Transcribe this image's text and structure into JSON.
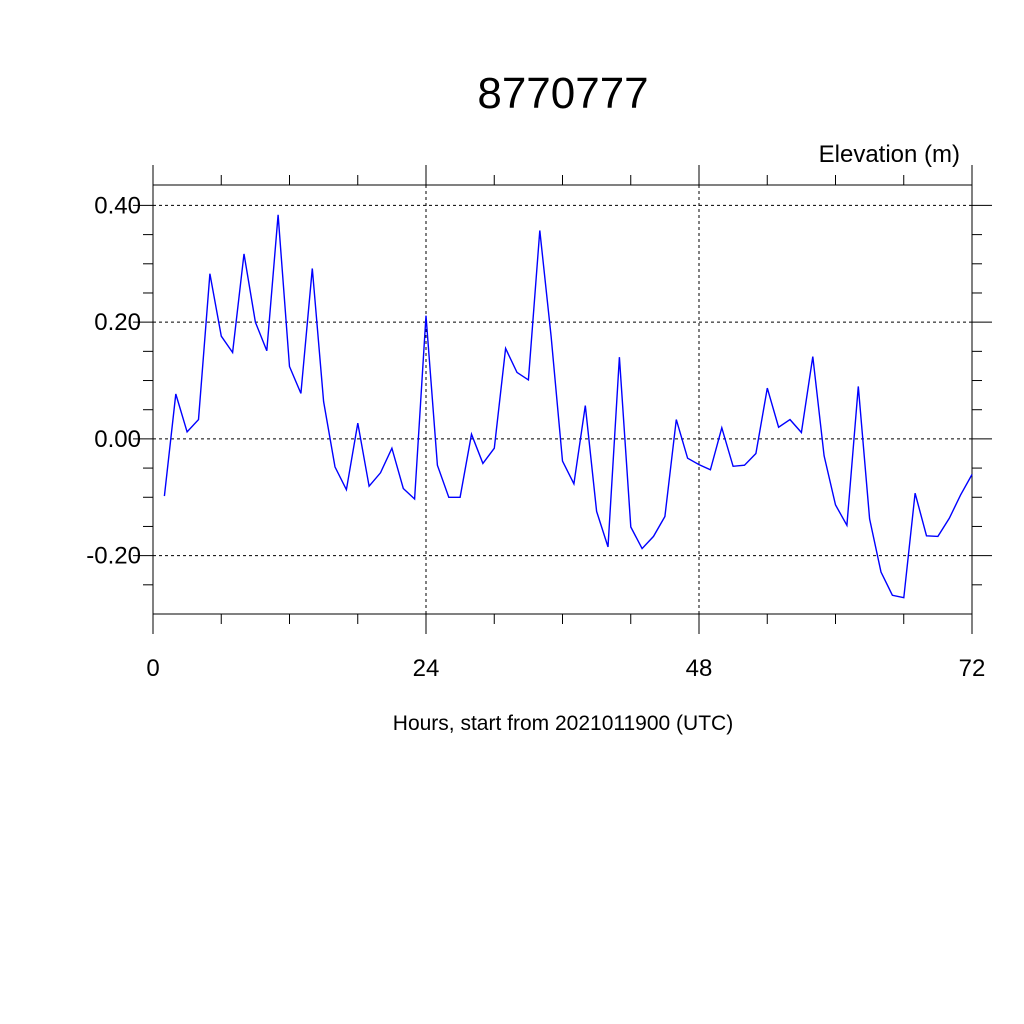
{
  "chart_data": {
    "type": "line",
    "title": "8770777",
    "ylabel": "Elevation (m)",
    "xlabel": "Hours, start from 2021011900 (UTC)",
    "xlim": [
      0,
      72
    ],
    "ylim": [
      -0.3,
      0.435
    ],
    "x_ticks": [
      0,
      24,
      48,
      72
    ],
    "x_tick_labels": [
      "0",
      "24",
      "48",
      "72"
    ],
    "y_ticks": [
      -0.2,
      0.0,
      0.2,
      0.4
    ],
    "y_tick_labels": [
      "-0.20",
      "0.00",
      "0.20",
      "0.40"
    ],
    "grid": true,
    "line_color": "#0000ff",
    "series": [
      {
        "x": [
          1,
          2,
          3,
          4,
          5,
          6,
          7,
          8,
          9,
          10,
          11,
          12,
          13,
          14,
          15,
          16,
          17,
          18,
          19,
          20,
          21,
          22,
          23,
          24,
          25,
          26,
          27,
          28,
          29,
          30,
          31,
          32,
          33,
          34,
          35,
          36,
          37,
          38,
          39,
          40,
          41,
          42,
          43,
          44,
          45,
          46,
          47,
          48,
          49,
          50,
          51,
          52,
          53,
          54,
          55,
          56,
          57,
          58,
          59,
          60,
          61,
          62,
          63,
          64,
          65,
          66,
          67,
          68,
          69,
          70,
          71,
          72
        ],
        "values": [
          -0.098,
          0.077,
          0.012,
          0.033,
          0.283,
          0.176,
          0.148,
          0.317,
          0.2,
          0.151,
          0.384,
          0.124,
          0.078,
          0.292,
          0.064,
          -0.048,
          -0.087,
          0.027,
          -0.081,
          -0.058,
          -0.016,
          -0.085,
          -0.103,
          0.211,
          -0.045,
          -0.1,
          -0.1,
          0.008,
          -0.042,
          -0.016,
          0.155,
          0.114,
          0.101,
          0.357,
          0.176,
          -0.038,
          -0.077,
          0.057,
          -0.124,
          -0.185,
          0.14,
          -0.151,
          -0.188,
          -0.167,
          -0.133,
          0.033,
          -0.033,
          -0.044,
          -0.053,
          0.019,
          -0.047,
          -0.045,
          -0.025,
          0.087,
          0.02,
          0.033,
          0.011,
          0.141,
          -0.029,
          -0.113,
          -0.148,
          0.09,
          -0.137,
          -0.228,
          -0.268,
          -0.272,
          -0.093,
          -0.166,
          -0.167,
          -0.136,
          -0.096,
          -0.061
        ]
      }
    ]
  }
}
